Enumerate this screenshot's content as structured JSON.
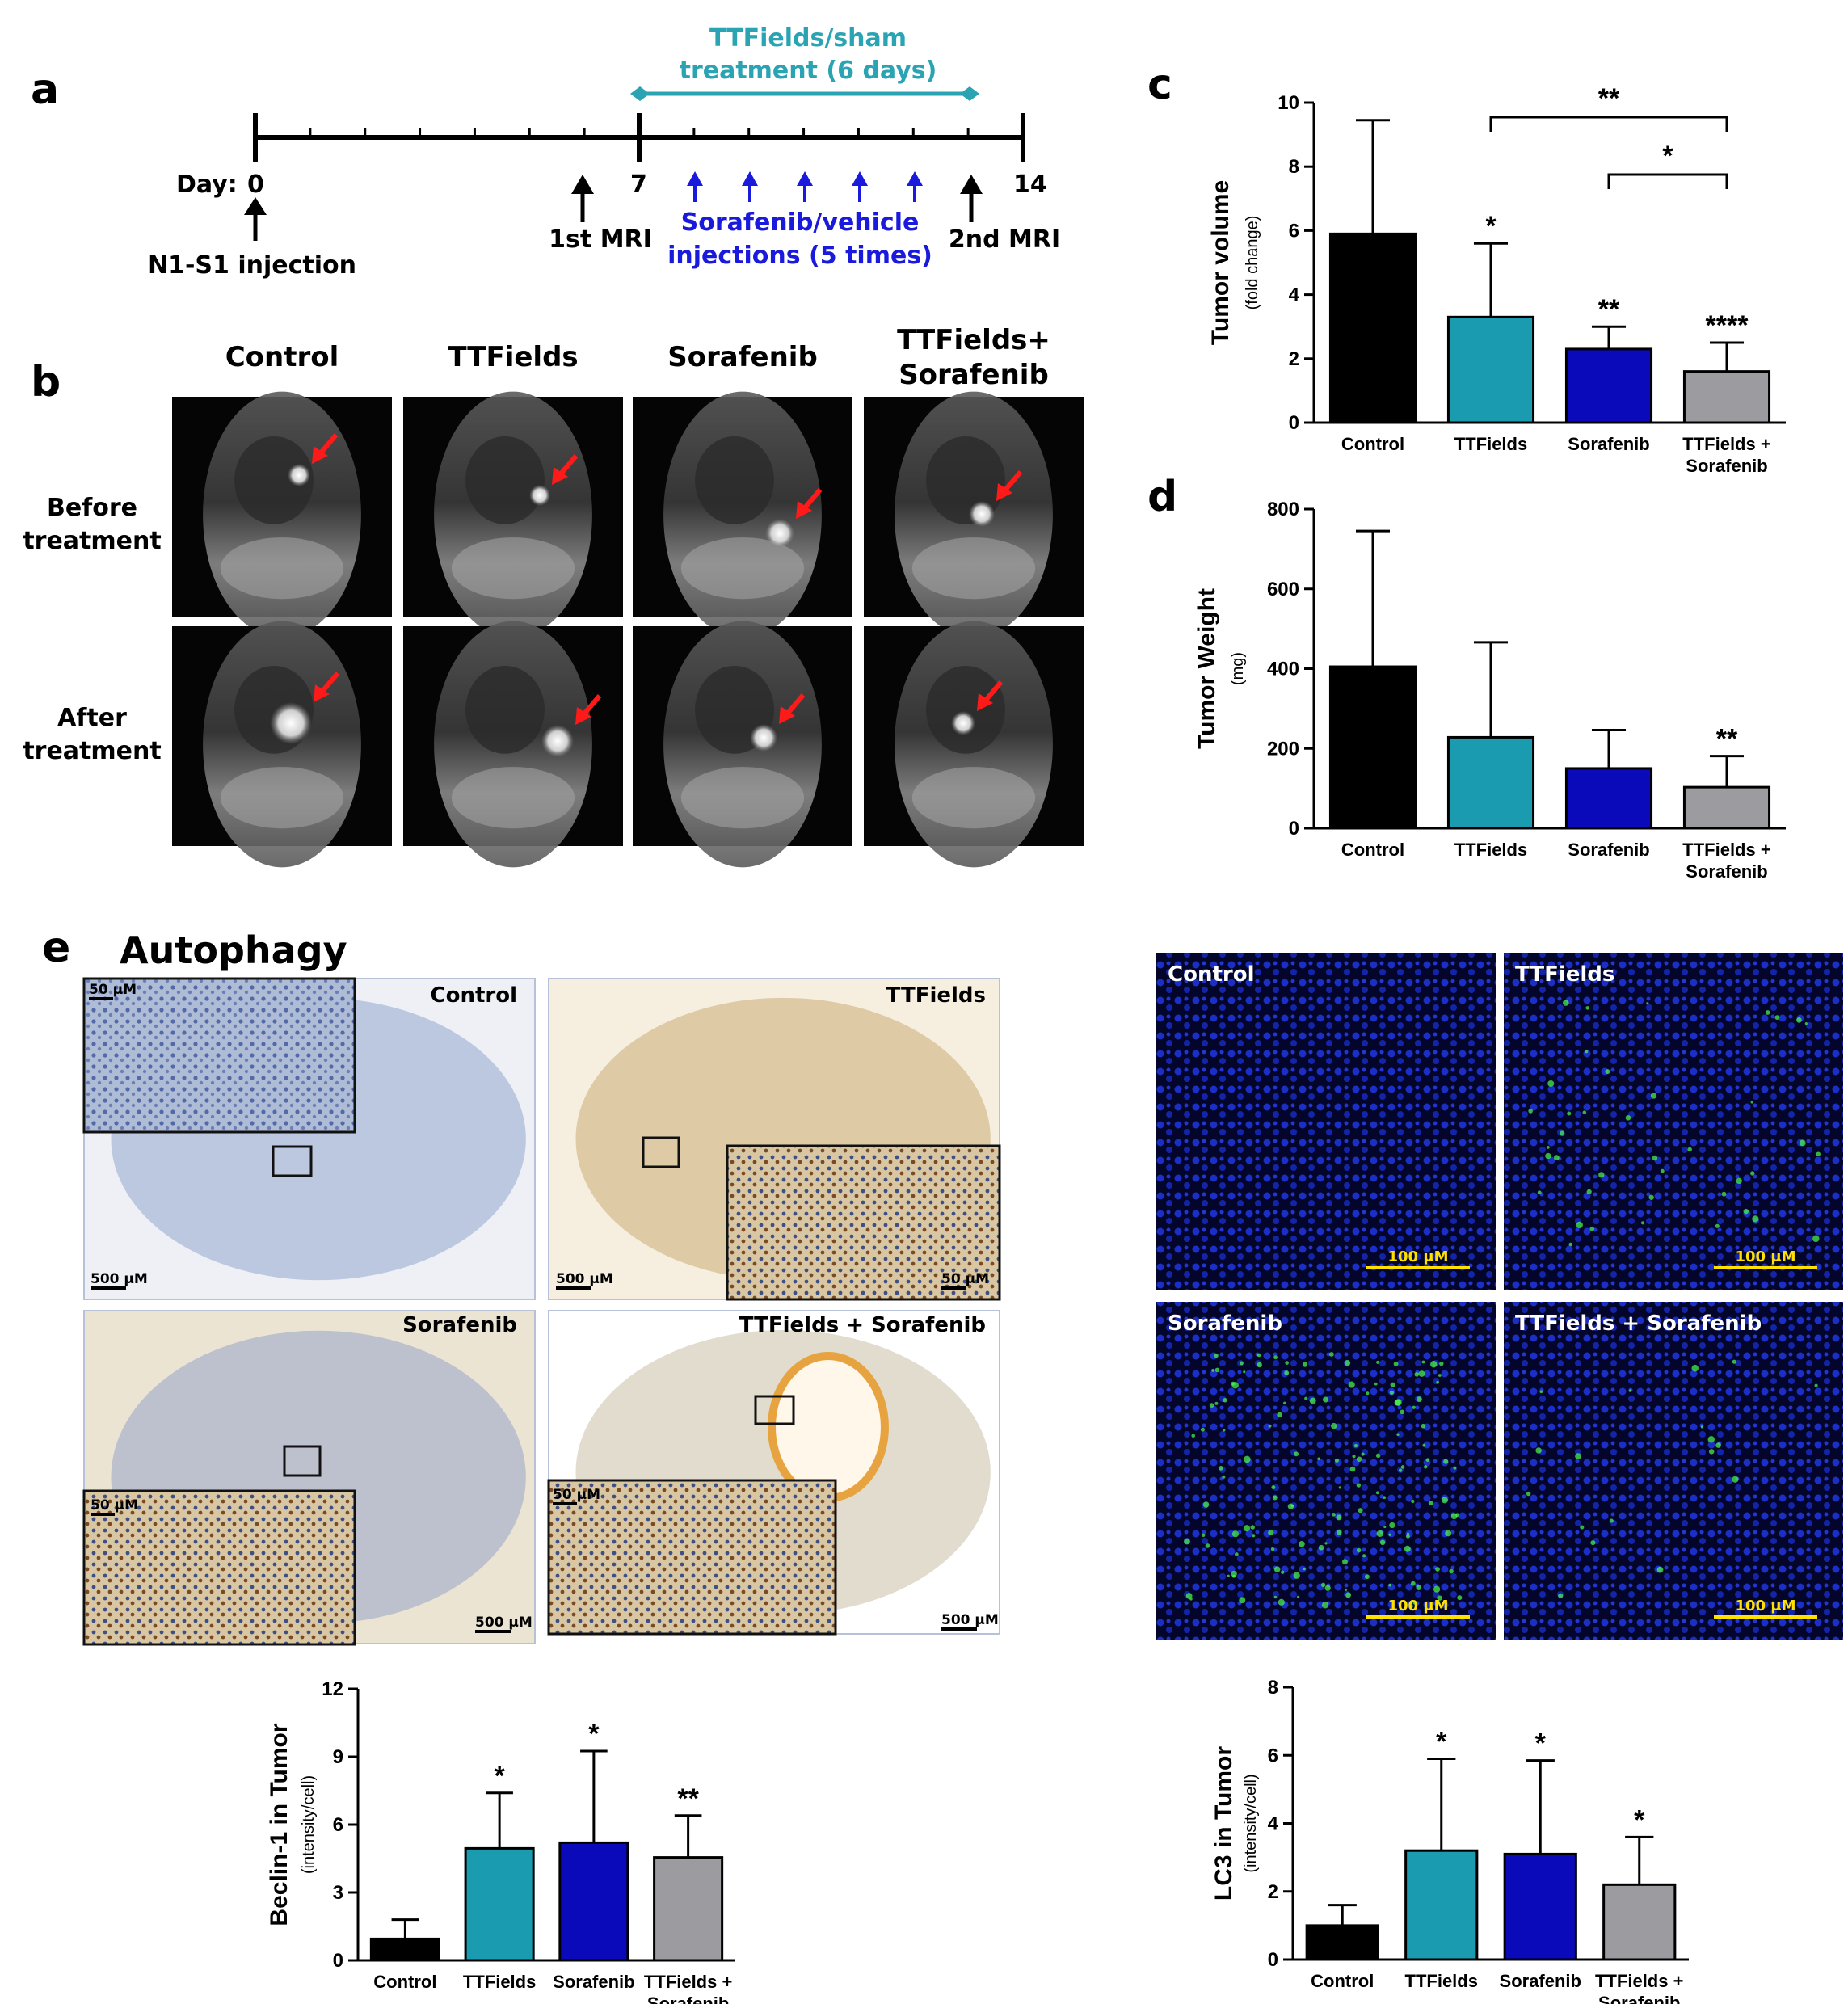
{
  "panel_labels": {
    "a": "a",
    "b": "b",
    "c": "c",
    "d": "d",
    "e": "e"
  },
  "timeline": {
    "treatment_label_line1": "TTFields/sham",
    "treatment_label_line2": "treatment (6 days)",
    "day_label": "Day:",
    "days": [
      "0",
      "7",
      "14"
    ],
    "injection_label": "N1-S1 injection",
    "mri1_label": "1st MRI",
    "mri2_label": "2nd MRI",
    "sorafenib_line1": "Sorafenib/vehicle",
    "sorafenib_line2": "injections (5 times)",
    "colors": {
      "treatment": "#2aa3b3",
      "injections": "#1a1adc"
    }
  },
  "mri": {
    "headers": [
      "Control",
      "TTFields",
      "Sorafenib",
      "TTFields+\nSorafenib"
    ],
    "rows": [
      "Before\ntreatment",
      "After\ntreatment"
    ]
  },
  "section_e_title": "Autophagy",
  "ihc": {
    "labels": [
      "Control",
      "TTFields",
      "Sorafenib",
      "TTFields + Sorafenib"
    ],
    "scale_large": "500 μM",
    "scale_small": "50 μM"
  },
  "if_panel": {
    "labels": [
      "Control",
      "TTFields",
      "Sorafenib",
      "TTFields + Sorafenib"
    ],
    "scale": "100 μM"
  },
  "colors": {
    "Control": "#000000",
    "TTFields": "#1a9bb0",
    "Sorafenib": "#0a0aba",
    "Combo": "#9c9ca0"
  },
  "chart_data": [
    {
      "panel": "c",
      "type": "bar",
      "categories": [
        "Control",
        "TTFields",
        "Sorafenib",
        "TTFields +\nSorafenib"
      ],
      "values": [
        5.9,
        3.3,
        2.3,
        1.6
      ],
      "errors": [
        3.55,
        2.3,
        0.7,
        0.9
      ],
      "significance": [
        "",
        "*",
        "**",
        "****"
      ],
      "brackets": [
        {
          "from": 1,
          "to": 3,
          "label": "**"
        },
        {
          "from": 2,
          "to": 3,
          "label": "*"
        }
      ],
      "ylabel": "Tumor volume",
      "ylabel_sub": "(fold change)",
      "ylim": [
        0,
        10
      ],
      "yticks": [
        "0",
        "2",
        "4",
        "6",
        "8",
        "10"
      ]
    },
    {
      "panel": "d",
      "type": "bar",
      "categories": [
        "Control",
        "TTFields",
        "Sorafenib",
        "TTFields +\nSorafenib"
      ],
      "values": [
        405,
        228,
        150,
        103
      ],
      "errors": [
        340,
        238,
        96,
        78
      ],
      "significance": [
        "",
        "",
        "",
        "**"
      ],
      "ylabel": "Tumor Weight",
      "ylabel_sub": "(mg)",
      "ylim": [
        0,
        800
      ],
      "yticks": [
        "0",
        "200",
        "400",
        "600",
        "800"
      ]
    },
    {
      "panel": "e-beclin",
      "type": "bar",
      "categories": [
        "Control",
        "TTFields",
        "Sorafenib",
        "TTFields +\nSorafenib"
      ],
      "values": [
        0.95,
        4.95,
        5.2,
        4.55
      ],
      "errors": [
        0.85,
        2.45,
        4.05,
        1.85
      ],
      "significance": [
        "",
        "*",
        "*",
        "**"
      ],
      "ylabel": "Beclin-1 in Tumor",
      "ylabel_sub": "(intensity/cell)",
      "ylim": [
        0,
        12
      ],
      "yticks": [
        "0",
        "3",
        "6",
        "9",
        "12"
      ]
    },
    {
      "panel": "e-lc3",
      "type": "bar",
      "categories": [
        "Control",
        "TTFields",
        "Sorafenib",
        "TTFields +\nSorafenib"
      ],
      "values": [
        1.0,
        3.2,
        3.1,
        2.2
      ],
      "errors": [
        0.6,
        2.7,
        2.75,
        1.4
      ],
      "significance": [
        "",
        "*",
        "*",
        "*"
      ],
      "ylabel": "LC3 in Tumor",
      "ylabel_sub": "(intensity/cell)",
      "ylim": [
        0,
        8
      ],
      "yticks": [
        "0",
        "2",
        "4",
        "6",
        "8"
      ]
    }
  ]
}
